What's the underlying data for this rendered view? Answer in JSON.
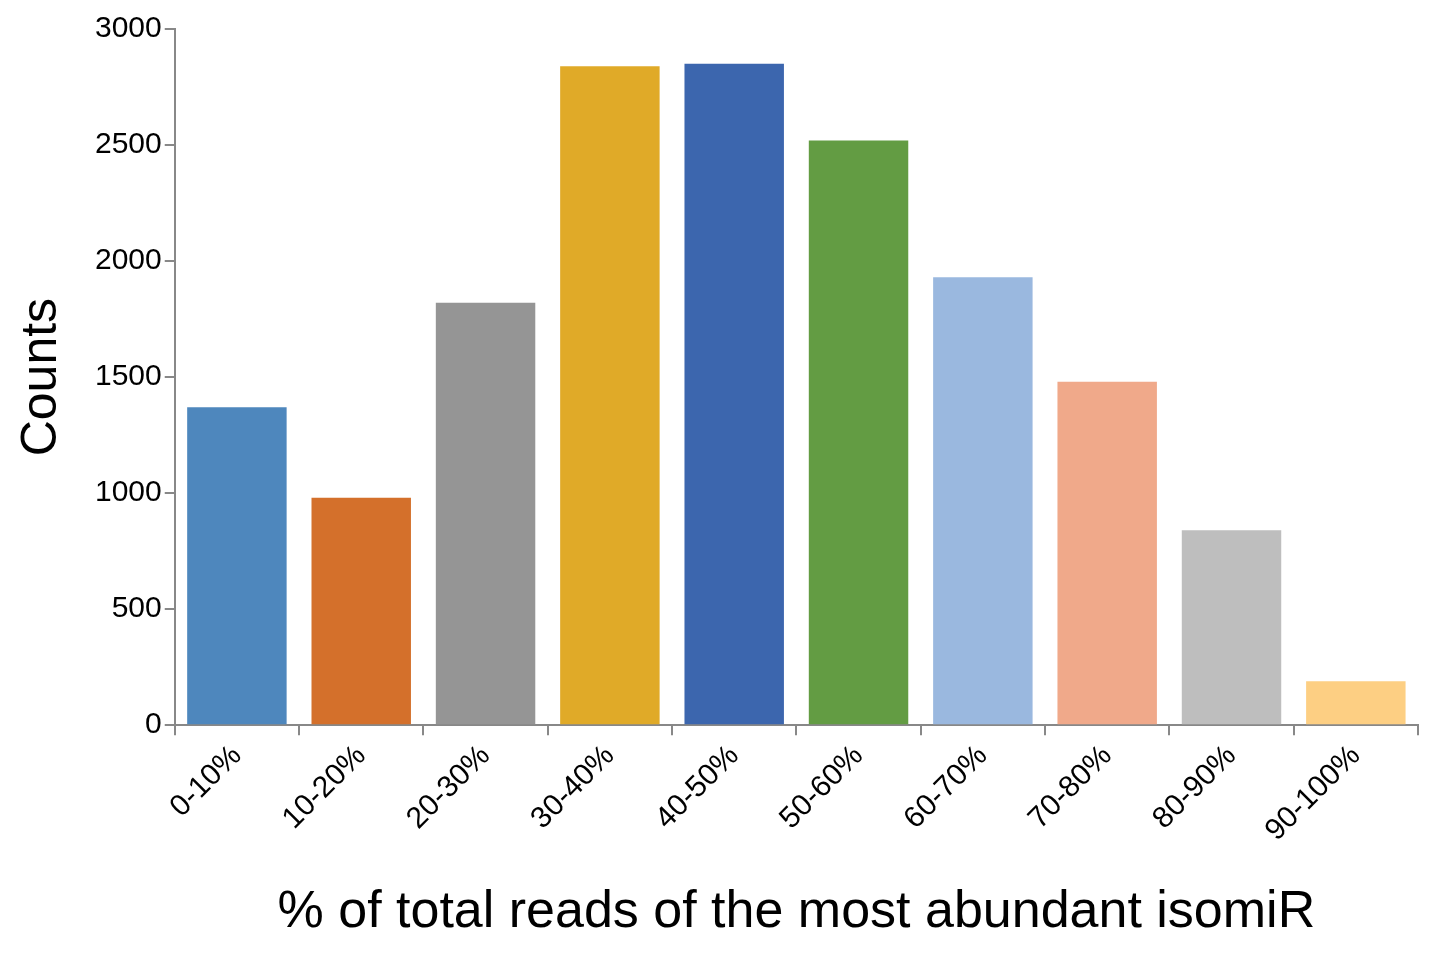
{
  "chart_data": {
    "type": "bar",
    "xlabel": "% of total reads of the most abundant isomiR",
    "ylabel": "Counts",
    "categories": [
      "0-10%",
      "10-20%",
      "20-30%",
      "30-40%",
      "40-50%",
      "50-60%",
      "60-70%",
      "70-80%",
      "80-90%",
      "90-100%"
    ],
    "values": [
      1370,
      980,
      1820,
      2840,
      2850,
      2520,
      1930,
      1480,
      840,
      190
    ],
    "colors": [
      "#4e87bd",
      "#d4702b",
      "#959595",
      "#e0aa28",
      "#3c66ae",
      "#639c43",
      "#9ab8df",
      "#f0a98a",
      "#bebebe",
      "#fdcf83"
    ],
    "ylim": [
      0,
      3000
    ],
    "yticks": [
      0,
      500,
      1000,
      1500,
      2000,
      2500,
      3000
    ],
    "grid": false,
    "legend": false
  }
}
